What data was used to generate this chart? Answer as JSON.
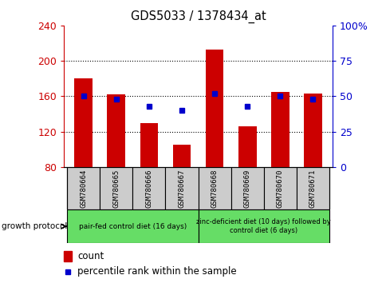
{
  "title": "GDS5033 / 1378434_at",
  "samples": [
    "GSM780664",
    "GSM780665",
    "GSM780666",
    "GSM780667",
    "GSM780668",
    "GSM780669",
    "GSM780670",
    "GSM780671"
  ],
  "counts": [
    180,
    162,
    130,
    105,
    213,
    126,
    165,
    163
  ],
  "percentile_ranks": [
    50,
    48,
    43,
    40,
    52,
    43,
    50,
    48
  ],
  "ylim_left": [
    80,
    240
  ],
  "ylim_right": [
    0,
    100
  ],
  "yticks_left": [
    80,
    120,
    160,
    200,
    240
  ],
  "yticks_right": [
    0,
    25,
    50,
    75,
    100
  ],
  "bar_color": "#cc0000",
  "dot_color": "#0000cc",
  "group1_label": "pair-fed control diet (16 days)",
  "group2_label": "zinc-deficient diet (10 days) followed by\ncontrol diet (6 days)",
  "group1_indices": [
    0,
    1,
    2,
    3
  ],
  "group2_indices": [
    4,
    5,
    6,
    7
  ],
  "group1_color": "#66dd66",
  "group2_color": "#66dd66",
  "sample_bg_color": "#cccccc",
  "protocol_label": "growth protocol",
  "legend_count_label": "count",
  "legend_pct_label": "percentile rank within the sample",
  "gridline_yticks": [
    120,
    160,
    200
  ]
}
